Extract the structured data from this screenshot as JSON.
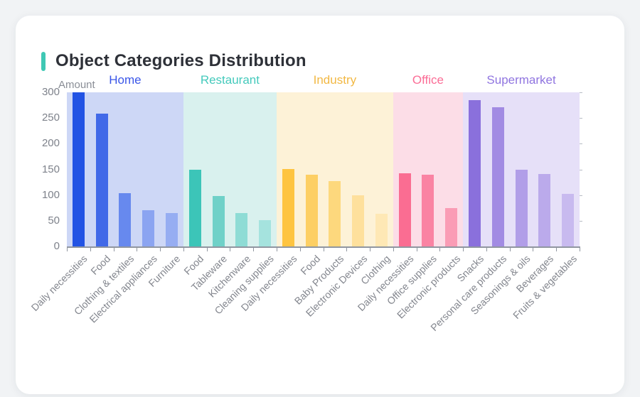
{
  "header": {
    "title": "Object Categories Distribution",
    "accent_color": "#3fc8b4"
  },
  "chart_data": {
    "type": "bar",
    "title": "Object Categories Distribution",
    "xlabel": "",
    "ylabel": "Amount",
    "ylim": [
      0,
      300
    ],
    "yticks": [
      0,
      50,
      100,
      150,
      200,
      250,
      300
    ],
    "grid": false,
    "x_label_rotation": 45,
    "legend_position": "inline-top-band-labels",
    "axis_color": "#9096a0",
    "tick_label_color": "#7e828b",
    "groups": [
      {
        "name": "Home",
        "label_color": "#3a56e8",
        "band_color": "#cdd7f6",
        "bar_colors": [
          "#2253e4",
          "#4169e8",
          "#6789ee",
          "#8ba4f1",
          "#96adf2"
        ],
        "categories": [
          "Daily necessities",
          "Food",
          "Clothing & textiles",
          "Electrical appliances",
          "Furniture"
        ],
        "values": [
          300,
          258,
          103,
          70,
          65
        ]
      },
      {
        "name": "Restaurant",
        "label_color": "#45cabc",
        "band_color": "#d9f1ee",
        "bar_colors": [
          "#3cc5b8",
          "#6fd1c8",
          "#8edcd5",
          "#a5e3de"
        ],
        "categories": [
          "Food",
          "Tableware",
          "Kitchenware",
          "Cleaning supplies"
        ],
        "values": [
          150,
          98,
          65,
          51
        ]
      },
      {
        "name": "Industry",
        "label_color": "#f2b843",
        "band_color": "#fdf2d7",
        "bar_colors": [
          "#fec440",
          "#fdcf63",
          "#fdd87d",
          "#fee09c",
          "#fee8b5"
        ],
        "categories": [
          "Daily necessities",
          "Food",
          "Baby Products",
          "Electronic Devices",
          "Clothing"
        ],
        "values": [
          151,
          139,
          127,
          100,
          64
        ]
      },
      {
        "name": "Office",
        "label_color": "#fb6d96",
        "band_color": "#fcdde7",
        "bar_colors": [
          "#fa6d92",
          "#fa83a3",
          "#fa9cb5"
        ],
        "categories": [
          "Daily necessities",
          "Office supplies",
          "Electronic products"
        ],
        "values": [
          142,
          139,
          75
        ]
      },
      {
        "name": "Supermarket",
        "label_color": "#9075e0",
        "band_color": "#e6e0f8",
        "bar_colors": [
          "#8a70dc",
          "#a28be3",
          "#b19ee8",
          "#bbaaeb",
          "#c8baef"
        ],
        "categories": [
          "Snacks",
          "Personal care products",
          "Seasonings & oils",
          "Beverages",
          "Fruits & vegetables"
        ],
        "values": [
          285,
          271,
          149,
          141,
          102
        ]
      }
    ]
  }
}
